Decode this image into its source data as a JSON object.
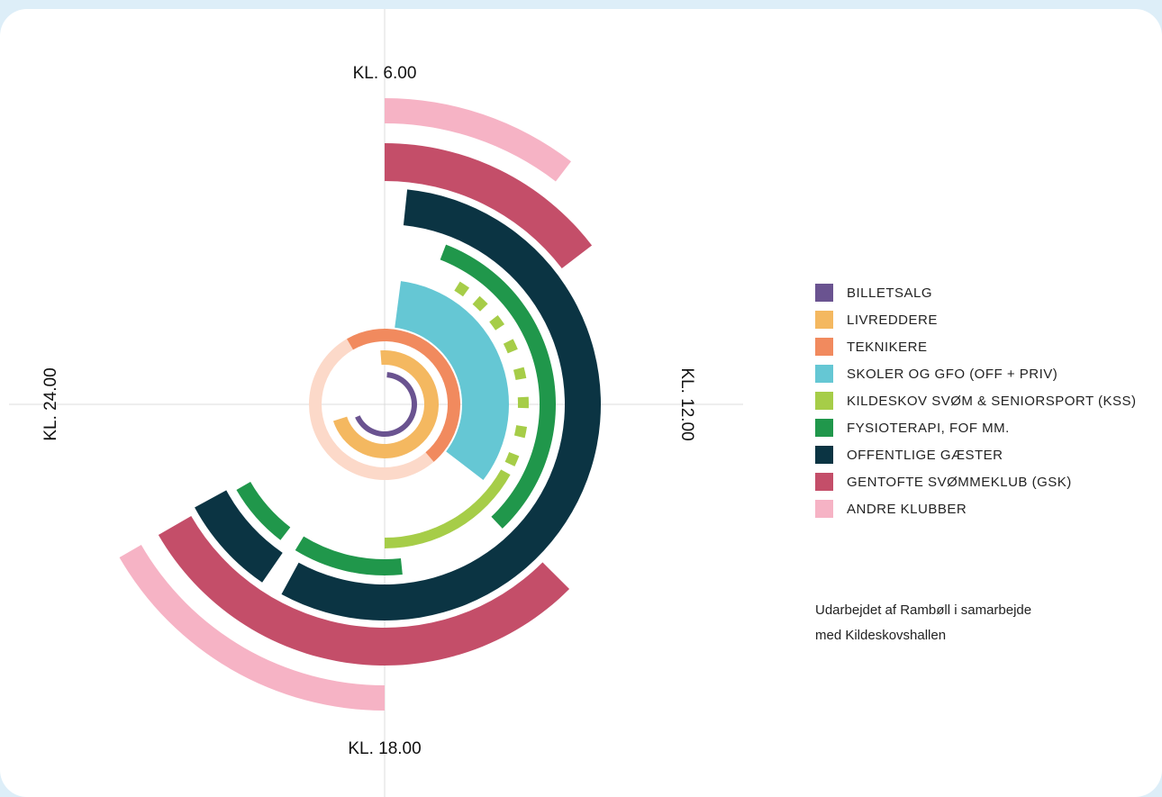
{
  "chart_data": {
    "type": "radial-timeline",
    "axis_labels": {
      "top": "KL. 6.00",
      "right": "KL. 12.00",
      "bottom": "KL. 18.00",
      "left": "KL. 24.00"
    },
    "series": [
      {
        "name": "BILLETSALG",
        "color": "#6a5390",
        "values": [
          [
            6.3,
            22.4
          ]
        ]
      },
      {
        "name": "LIVREDDERE",
        "color": "#f4b860",
        "values": [
          [
            5.7,
            22.8
          ]
        ]
      },
      {
        "color": "#fcd9c9",
        "values": [
          [
            15.3,
            4.0
          ]
        ]
      },
      {
        "name": "TEKNIKERE",
        "color": "#f18a5e",
        "values": [
          [
            4.0,
            15.3
          ]
        ]
      },
      {
        "name": "SKOLER OG GFO (OFF + PRIV)",
        "color": "#65c7d4",
        "values": [
          [
            6.5,
            14.5
          ]
        ]
      },
      {
        "name": "KILDESKOV SVØM & SENIORSPORT (KSS)",
        "color": "#a6cd48",
        "values": [
          [
            8.1,
            8.4
          ],
          [
            8.75,
            9.05
          ],
          [
            9.45,
            9.75
          ],
          [
            10.2,
            10.5
          ],
          [
            11.0,
            11.3
          ],
          [
            11.8,
            12.1
          ],
          [
            12.6,
            12.9
          ],
          [
            13.4,
            13.7
          ],
          [
            13.95,
            18.0
          ]
        ]
      },
      {
        "name": "FYSIOTERAPI, FOF MM.",
        "color": "#20974b",
        "values": [
          [
            7.4,
            15.1
          ],
          [
            17.6,
            20.1
          ],
          [
            20.5,
            22.0
          ]
        ]
      },
      {
        "name": "OFFENTLIGE GÆSTER",
        "color": "#0b3443",
        "values": [
          [
            6.4,
            19.9
          ],
          [
            20.3,
            22.1
          ]
        ]
      },
      {
        "name": "GENTOFTE SVØMMEKLUB (GSK)",
        "color": "#c44e69",
        "values": [
          [
            6.0,
            9.5
          ],
          [
            15.0,
            22.0
          ]
        ]
      },
      {
        "name": "ANDRE KLUBBER",
        "color": "#f6b3c5",
        "values": [
          [
            6.0,
            8.5
          ],
          [
            18.0,
            22.0
          ]
        ]
      }
    ],
    "note": [
      "Udarbejdet af Rambøll i samarbejde",
      "med Kildeskovshallen"
    ]
  }
}
